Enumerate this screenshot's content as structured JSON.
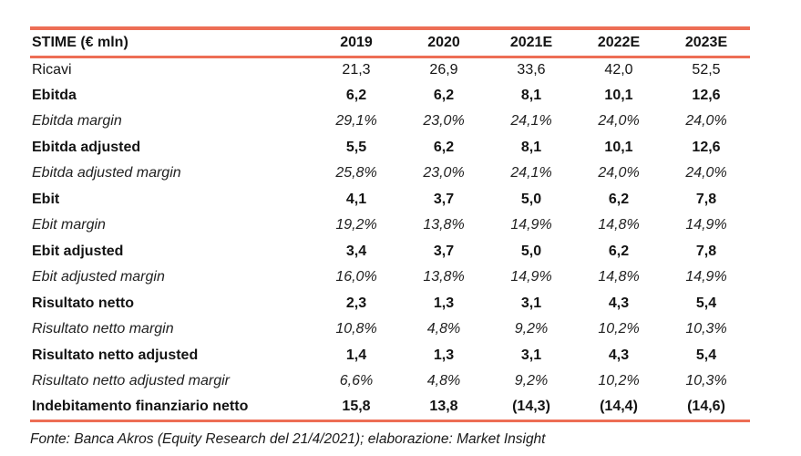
{
  "colors": {
    "accent_line": "#ed6e55",
    "text": "#141414"
  },
  "table": {
    "header": {
      "label": "STIME (€ mln)",
      "columns": [
        "2019",
        "2020",
        "2021E",
        "2022E",
        "2023E"
      ]
    },
    "rows": [
      {
        "label": "Ricavi",
        "style": "normal",
        "values": [
          "21,3",
          "26,9",
          "33,6",
          "42,0",
          "52,5"
        ]
      },
      {
        "label": "Ebitda",
        "style": "bold",
        "values": [
          "6,2",
          "6,2",
          "8,1",
          "10,1",
          "12,6"
        ]
      },
      {
        "label": "Ebitda margin",
        "style": "italic",
        "values": [
          "29,1%",
          "23,0%",
          "24,1%",
          "24,0%",
          "24,0%"
        ]
      },
      {
        "label": "Ebitda adjusted",
        "style": "bold",
        "values": [
          "5,5",
          "6,2",
          "8,1",
          "10,1",
          "12,6"
        ]
      },
      {
        "label": "Ebitda adjusted margin",
        "style": "italic",
        "values": [
          "25,8%",
          "23,0%",
          "24,1%",
          "24,0%",
          "24,0%"
        ]
      },
      {
        "label": "Ebit",
        "style": "bold",
        "values": [
          "4,1",
          "3,7",
          "5,0",
          "6,2",
          "7,8"
        ]
      },
      {
        "label": "Ebit margin",
        "style": "italic",
        "values": [
          "19,2%",
          "13,8%",
          "14,9%",
          "14,8%",
          "14,9%"
        ]
      },
      {
        "label": "Ebit adjusted",
        "style": "bold",
        "values": [
          "3,4",
          "3,7",
          "5,0",
          "6,2",
          "7,8"
        ]
      },
      {
        "label": "Ebit adjusted margin",
        "style": "italic",
        "values": [
          "16,0%",
          "13,8%",
          "14,9%",
          "14,8%",
          "14,9%"
        ]
      },
      {
        "label": "Risultato netto",
        "style": "bold",
        "values": [
          "2,3",
          "1,3",
          "3,1",
          "4,3",
          "5,4"
        ]
      },
      {
        "label": "Risultato netto margin",
        "style": "italic",
        "values": [
          "10,8%",
          "4,8%",
          "9,2%",
          "10,2%",
          "10,3%"
        ]
      },
      {
        "label": "Risultato netto adjusted",
        "style": "bold",
        "values": [
          "1,4",
          "1,3",
          "3,1",
          "4,3",
          "5,4"
        ]
      },
      {
        "label": "Risultato netto adjusted margir",
        "style": "italic",
        "values": [
          "6,6%",
          "4,8%",
          "9,2%",
          "10,2%",
          "10,3%"
        ]
      },
      {
        "label": "Indebitamento finanziario netto",
        "style": "bold",
        "values": [
          "15,8",
          "13,8",
          "(14,3)",
          "(14,4)",
          "(14,6)"
        ]
      }
    ]
  },
  "footer": {
    "source_note": "Fonte: Banca Akros (Equity Research del 21/4/2021); elaborazione: Market Insight"
  }
}
